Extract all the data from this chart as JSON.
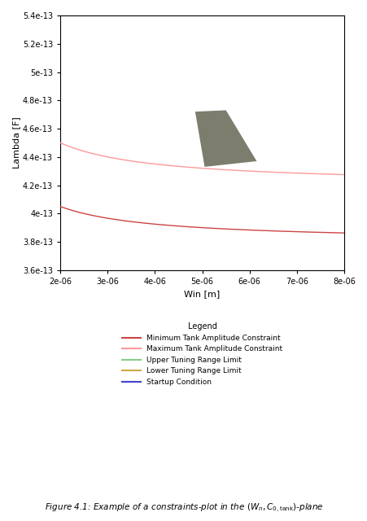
{
  "title": "",
  "xlabel": "Win [m]",
  "ylabel": "Lambda [F]",
  "xlim": [
    2e-06,
    8e-06
  ],
  "ylim": [
    3.6e-13,
    5.4e-13
  ],
  "xticks": [
    2e-06,
    3e-06,
    4e-06,
    5e-06,
    6e-06,
    7e-06,
    8e-06
  ],
  "yticks": [
    3.6e-13,
    3.8e-13,
    4e-13,
    4.2e-13,
    4.4e-13,
    4.6e-13,
    4.8e-13,
    5e-13,
    5.2e-13,
    5.4e-13
  ],
  "legend_labels": [
    "Minimum Tank Amplitude Constraint",
    "Maximum Tank Amplitude Constraint",
    "Upper Tuning Range Limit",
    "Lower Tuning Range Limit",
    "Startup Condition"
  ],
  "legend_colors": [
    "#cc4444",
    "#ff9999",
    "#88cc88",
    "#ccaa44",
    "#4444cc"
  ],
  "legend_title": "Legend",
  "background_color": "#ffffff",
  "feasible_region_color": "#666655",
  "feasible_region_alpha": 0.85
}
